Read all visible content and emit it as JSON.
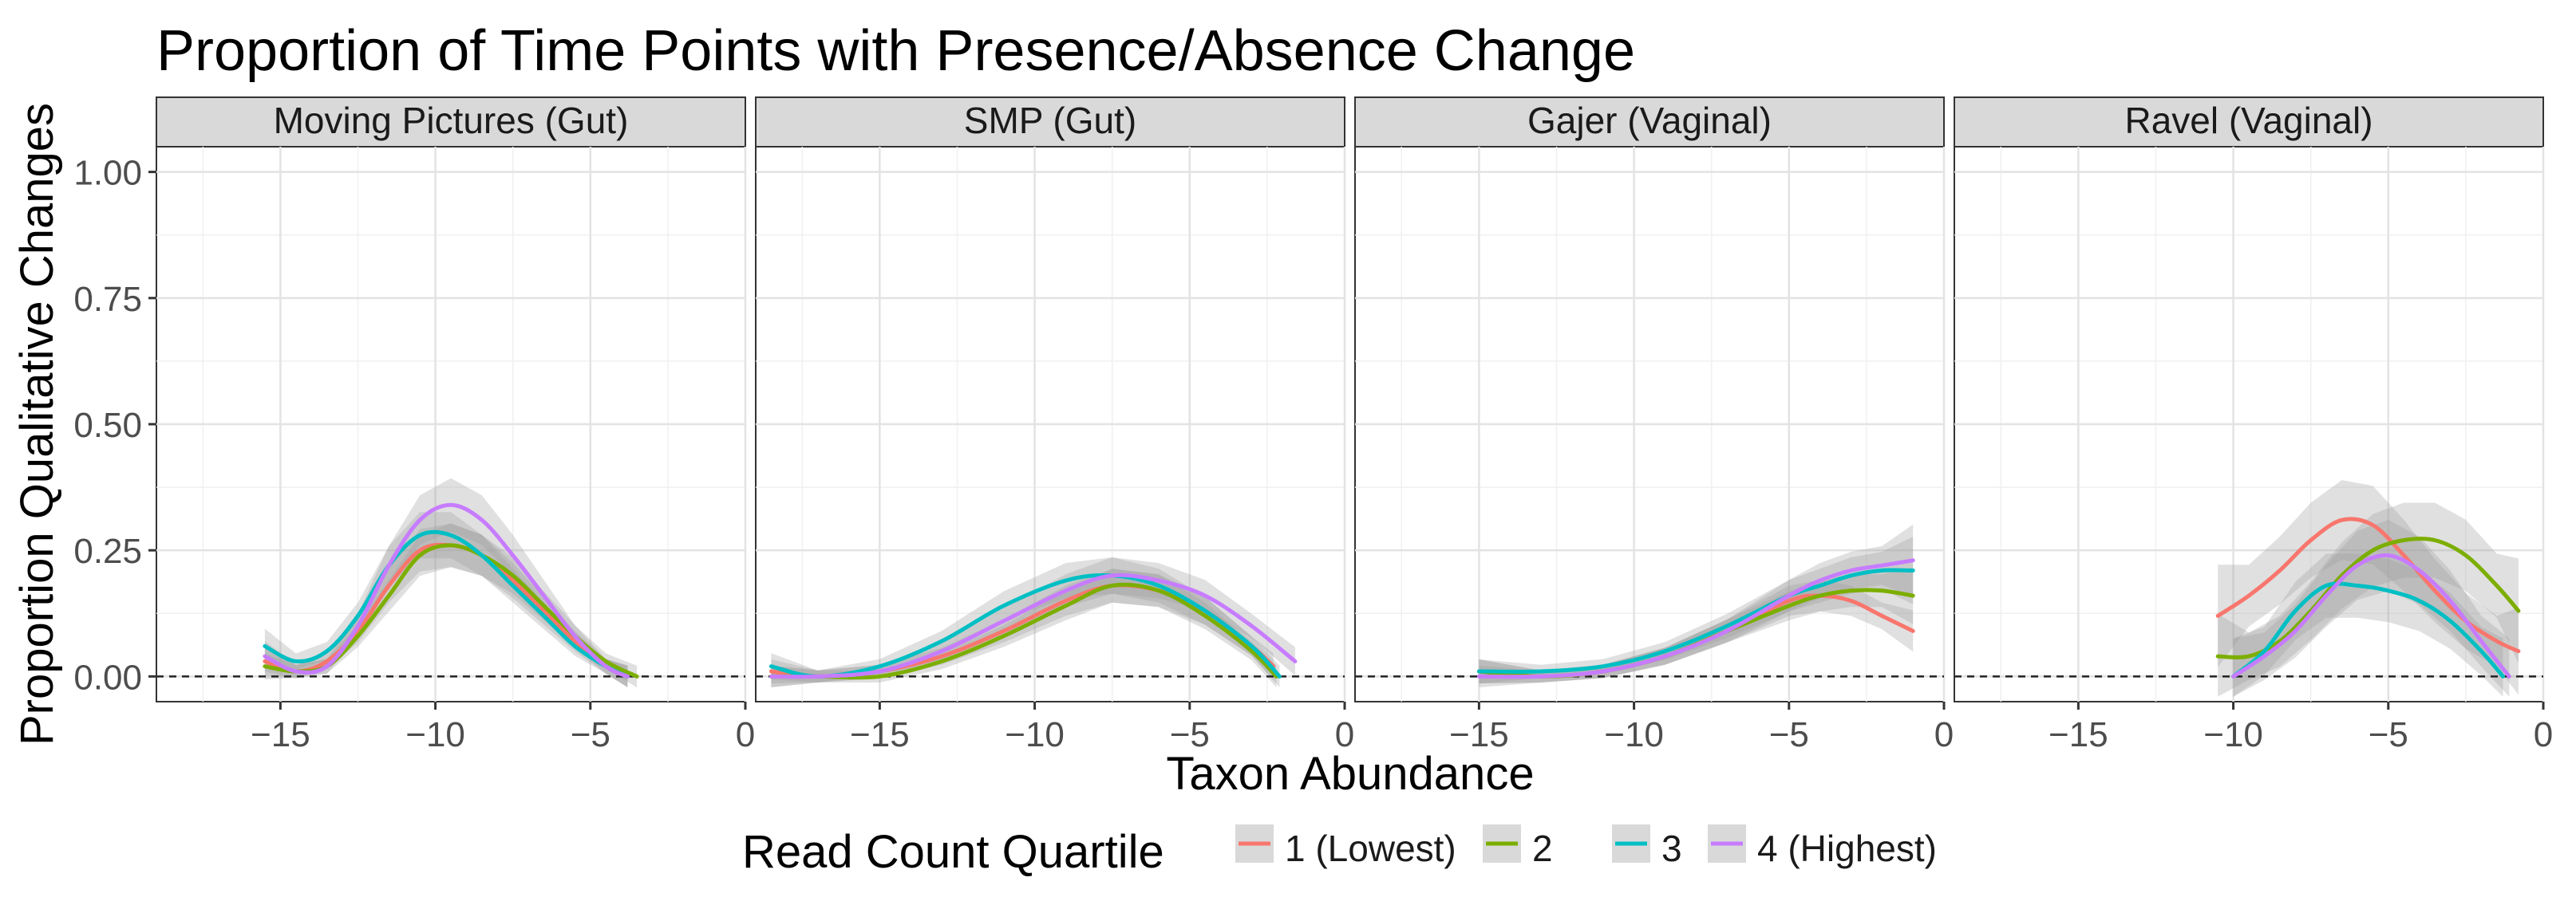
{
  "chart_data": {
    "type": "line",
    "title": "Proportion of Time Points with Presence/Absence Change",
    "xlabel": "Taxon Abundance",
    "ylabel": "Proportion Qualitative Changes",
    "xlim": [
      -19,
      0
    ],
    "ylim": [
      -0.05,
      1.05
    ],
    "x_ticks": [
      -15,
      -10,
      -5,
      0
    ],
    "x_tick_labels": [
      "−15",
      "−10",
      "−5",
      "0"
    ],
    "y_ticks": [
      0,
      0.25,
      0.5,
      0.75,
      1.0
    ],
    "y_tick_labels": [
      "0.00",
      "0.25",
      "0.50",
      "0.75",
      "1.00"
    ],
    "reference_line_y": 0,
    "legend": {
      "title": "Read Count Quartile",
      "position": "bottom",
      "entries": [
        {
          "key": "1",
          "label": "1 (Lowest)",
          "color": "#F8766D"
        },
        {
          "key": "2",
          "label": "2",
          "color": "#7CAE00"
        },
        {
          "key": "3",
          "label": "3",
          "color": "#00BFC4"
        },
        {
          "key": "4",
          "label": "4 (Highest)",
          "color": "#C77CFF"
        }
      ]
    },
    "panels": [
      {
        "title": "Moving Pictures (Gut)",
        "series": [
          {
            "name": "1 (Lowest)",
            "x": [
              -15.5,
              -14.5,
              -13.5,
              -12.5,
              -11.5,
              -10.5,
              -9.5,
              -8.5,
              -7.5,
              -6.5,
              -5.5,
              -4.5,
              -3.8
            ],
            "y": [
              0.03,
              0.01,
              0.03,
              0.09,
              0.18,
              0.25,
              0.26,
              0.24,
              0.19,
              0.13,
              0.07,
              0.02,
              0.0
            ]
          },
          {
            "name": "2",
            "x": [
              -15.5,
              -14.5,
              -13.5,
              -12.5,
              -11.5,
              -10.5,
              -9.5,
              -8.5,
              -7.5,
              -6.5,
              -5.5,
              -4.5,
              -3.5
            ],
            "y": [
              0.02,
              0.01,
              0.02,
              0.08,
              0.16,
              0.24,
              0.26,
              0.24,
              0.2,
              0.14,
              0.08,
              0.03,
              0.0
            ]
          },
          {
            "name": "3",
            "x": [
              -15.5,
              -14.5,
              -13.5,
              -12.5,
              -11.5,
              -10.5,
              -9.5,
              -8.5,
              -7.5,
              -6.5,
              -5.5,
              -4.5,
              -3.8
            ],
            "y": [
              0.06,
              0.03,
              0.05,
              0.12,
              0.22,
              0.28,
              0.28,
              0.24,
              0.18,
              0.12,
              0.06,
              0.02,
              0.0
            ]
          },
          {
            "name": "4 (Highest)",
            "x": [
              -15.5,
              -14.5,
              -13.5,
              -12.5,
              -11.5,
              -10.5,
              -9.5,
              -8.5,
              -7.5,
              -6.5,
              -5.5,
              -4.5,
              -3.8
            ],
            "y": [
              0.04,
              0.01,
              0.02,
              0.1,
              0.22,
              0.31,
              0.34,
              0.31,
              0.24,
              0.16,
              0.08,
              0.02,
              0.0
            ]
          }
        ]
      },
      {
        "title": "SMP (Gut)",
        "series": [
          {
            "name": "1 (Lowest)",
            "x": [
              -18.5,
              -17,
              -15,
              -13,
              -11,
              -9,
              -7.5,
              -6,
              -4.5,
              -3,
              -2.3
            ],
            "y": [
              0.01,
              0.0,
              0.01,
              0.04,
              0.09,
              0.15,
              0.18,
              0.17,
              0.13,
              0.06,
              0.02
            ]
          },
          {
            "name": "2",
            "x": [
              -18.5,
              -17,
              -15,
              -13,
              -11,
              -9,
              -7.5,
              -6,
              -4.5,
              -3,
              -2.2
            ],
            "y": [
              0.0,
              0.0,
              0.0,
              0.03,
              0.08,
              0.14,
              0.18,
              0.17,
              0.12,
              0.05,
              0.0
            ]
          },
          {
            "name": "3",
            "x": [
              -18.5,
              -17,
              -15,
              -13,
              -11,
              -9,
              -7.5,
              -6,
              -4.5,
              -3,
              -2.1
            ],
            "y": [
              0.02,
              0.0,
              0.02,
              0.07,
              0.14,
              0.19,
              0.2,
              0.18,
              0.13,
              0.06,
              0.0
            ]
          },
          {
            "name": "4 (Highest)",
            "x": [
              -18.5,
              -17,
              -15,
              -13,
              -11,
              -9,
              -7.5,
              -6,
              -4.5,
              -3,
              -1.6
            ],
            "y": [
              0.0,
              0.0,
              0.01,
              0.05,
              0.11,
              0.17,
              0.2,
              0.19,
              0.16,
              0.1,
              0.03
            ]
          }
        ]
      },
      {
        "title": "Gajer (Vaginal)",
        "series": [
          {
            "name": "1 (Lowest)",
            "x": [
              -15,
              -13,
              -11,
              -9,
              -7,
              -5,
              -4,
              -3,
              -2,
              -1
            ],
            "y": [
              0.01,
              0.0,
              0.01,
              0.04,
              0.09,
              0.15,
              0.16,
              0.15,
              0.12,
              0.09
            ]
          },
          {
            "name": "2",
            "x": [
              -15,
              -13,
              -11,
              -9,
              -7,
              -5,
              -4,
              -3,
              -2,
              -1
            ],
            "y": [
              0.01,
              0.0,
              0.01,
              0.04,
              0.09,
              0.14,
              0.16,
              0.17,
              0.17,
              0.16
            ]
          },
          {
            "name": "3",
            "x": [
              -15,
              -13,
              -11,
              -9,
              -7,
              -5,
              -4,
              -3,
              -2,
              -1
            ],
            "y": [
              0.01,
              0.01,
              0.02,
              0.05,
              0.1,
              0.16,
              0.18,
              0.2,
              0.21,
              0.21
            ]
          },
          {
            "name": "4 (Highest)",
            "x": [
              -15,
              -13,
              -11,
              -9,
              -7,
              -5,
              -4,
              -3,
              -2,
              -1
            ],
            "y": [
              0.0,
              0.0,
              0.01,
              0.04,
              0.09,
              0.16,
              0.19,
              0.21,
              0.22,
              0.23
            ]
          }
        ]
      },
      {
        "title": "Ravel (Vaginal)",
        "series": [
          {
            "name": "1 (Lowest)",
            "x": [
              -10.5,
              -9.5,
              -8.5,
              -7.5,
              -6.5,
              -5.5,
              -4.5,
              -3.5,
              -2.5,
              -1.5,
              -0.8
            ],
            "y": [
              0.12,
              0.16,
              0.21,
              0.27,
              0.31,
              0.3,
              0.24,
              0.17,
              0.11,
              0.07,
              0.05
            ]
          },
          {
            "name": "2",
            "x": [
              -10.5,
              -9.5,
              -8.5,
              -7.5,
              -6.5,
              -5.5,
              -4.5,
              -3.5,
              -2.5,
              -1.5,
              -0.8
            ],
            "y": [
              0.04,
              0.04,
              0.07,
              0.13,
              0.2,
              0.25,
              0.27,
              0.27,
              0.24,
              0.18,
              0.13
            ]
          },
          {
            "name": "3",
            "x": [
              -10,
              -9,
              -8,
              -7,
              -6,
              -5,
              -4,
              -3,
              -2,
              -1.3
            ],
            "y": [
              0.0,
              0.05,
              0.13,
              0.18,
              0.18,
              0.17,
              0.15,
              0.11,
              0.05,
              0.0
            ]
          },
          {
            "name": "4 (Highest)",
            "x": [
              -10,
              -9,
              -8,
              -7,
              -6,
              -5,
              -4,
              -3,
              -2,
              -1.1
            ],
            "y": [
              0.0,
              0.04,
              0.09,
              0.16,
              0.22,
              0.24,
              0.21,
              0.15,
              0.07,
              0.0
            ]
          }
        ]
      }
    ]
  }
}
